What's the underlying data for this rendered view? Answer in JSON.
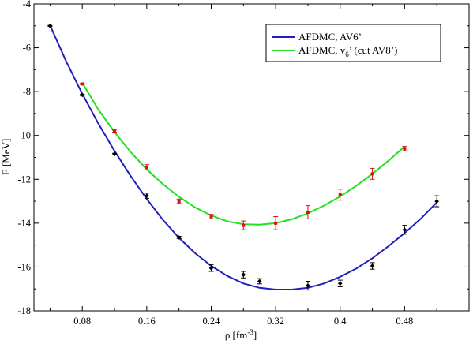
{
  "chart_data": {
    "type": "line",
    "title": "",
    "xlabel": "ρ [fm",
    "xlabel_sup": "-3",
    "xlabel_end": "]",
    "ylabel": "E [MeV]",
    "xlim": [
      0.02,
      0.56
    ],
    "ylim": [
      -18,
      -4
    ],
    "xticks": [
      "0.08",
      "0.16",
      "0.24",
      "0.32",
      "0.4",
      "0.48"
    ],
    "xtick_values": [
      0.08,
      0.16,
      0.24,
      0.32,
      0.4,
      0.48
    ],
    "yticks": [
      "-18",
      "-16",
      "-14",
      "-12",
      "-10",
      "-8",
      "-6",
      "-4"
    ],
    "ytick_values": [
      -18,
      -16,
      -14,
      -12,
      -10,
      -8,
      -6,
      -4
    ],
    "legend_position": "top-right",
    "legend": {
      "entry1": "AFDMC, AV6’",
      "entry2_main": "AFDMC, v",
      "entry2_sub": "6",
      "entry2_rest": "’ (cut AV8’)"
    },
    "series": [
      {
        "name": "AFDMC, AV6’",
        "line_color": "#1f1fbf",
        "marker_color": "#000000",
        "marker": "diamond",
        "x": [
          0.04,
          0.08,
          0.12,
          0.16,
          0.2,
          0.24,
          0.28,
          0.3,
          0.36,
          0.4,
          0.44,
          0.48,
          0.52
        ],
        "y": [
          -5.0,
          -8.15,
          -10.85,
          -12.75,
          -14.65,
          -16.05,
          -16.35,
          -16.65,
          -16.85,
          -16.75,
          -15.95,
          -14.3,
          -13.0
        ],
        "err": [
          0.02,
          0.03,
          0.04,
          0.12,
          0.05,
          0.15,
          0.15,
          0.12,
          0.2,
          0.15,
          0.15,
          0.2,
          0.25
        ],
        "fit": [
          [
            0.04,
            -4.98
          ],
          [
            0.06,
            -6.62
          ],
          [
            0.08,
            -8.1
          ],
          [
            0.1,
            -9.46
          ],
          [
            0.12,
            -10.7
          ],
          [
            0.14,
            -11.85
          ],
          [
            0.16,
            -12.9
          ],
          [
            0.18,
            -13.85
          ],
          [
            0.2,
            -14.67
          ],
          [
            0.22,
            -15.37
          ],
          [
            0.24,
            -15.95
          ],
          [
            0.26,
            -16.41
          ],
          [
            0.28,
            -16.75
          ],
          [
            0.3,
            -16.95
          ],
          [
            0.32,
            -17.03
          ],
          [
            0.34,
            -17.03
          ],
          [
            0.36,
            -16.95
          ],
          [
            0.38,
            -16.75
          ],
          [
            0.4,
            -16.45
          ],
          [
            0.42,
            -16.07
          ],
          [
            0.44,
            -15.6
          ],
          [
            0.46,
            -15.05
          ],
          [
            0.48,
            -14.45
          ],
          [
            0.5,
            -13.8
          ],
          [
            0.52,
            -13.05
          ]
        ]
      },
      {
        "name": "AFDMC, v6’ (cut AV8’)",
        "line_color": "#22e022",
        "marker_color": "#e01010",
        "marker": "square",
        "x": [
          0.08,
          0.12,
          0.16,
          0.2,
          0.24,
          0.28,
          0.32,
          0.36,
          0.4,
          0.44,
          0.48
        ],
        "y": [
          -7.65,
          -9.8,
          -11.45,
          -13.0,
          -13.7,
          -14.1,
          -14.0,
          -13.5,
          -12.7,
          -11.75,
          -10.6
        ],
        "err": [
          0.03,
          0.05,
          0.12,
          0.1,
          0.1,
          0.2,
          0.3,
          0.3,
          0.25,
          0.25,
          0.1
        ],
        "fit": [
          [
            0.08,
            -7.6
          ],
          [
            0.1,
            -8.82
          ],
          [
            0.12,
            -9.85
          ],
          [
            0.14,
            -10.75
          ],
          [
            0.16,
            -11.55
          ],
          [
            0.18,
            -12.22
          ],
          [
            0.2,
            -12.8
          ],
          [
            0.22,
            -13.28
          ],
          [
            0.24,
            -13.65
          ],
          [
            0.26,
            -13.92
          ],
          [
            0.28,
            -14.05
          ],
          [
            0.3,
            -14.07
          ],
          [
            0.32,
            -14.0
          ],
          [
            0.34,
            -13.82
          ],
          [
            0.36,
            -13.55
          ],
          [
            0.38,
            -13.2
          ],
          [
            0.4,
            -12.78
          ],
          [
            0.42,
            -12.3
          ],
          [
            0.44,
            -11.75
          ],
          [
            0.46,
            -11.15
          ],
          [
            0.48,
            -10.5
          ]
        ]
      }
    ]
  }
}
